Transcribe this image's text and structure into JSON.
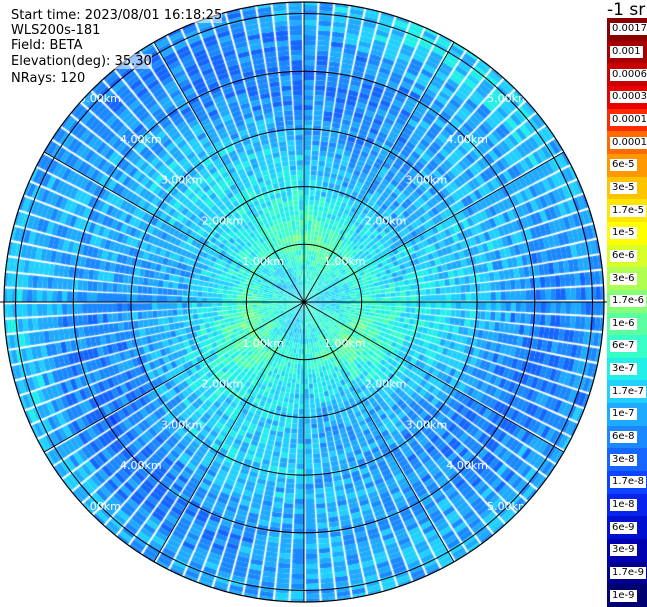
{
  "header": {
    "start_time": "Start time: 2023/08/01 16:18:25",
    "instrument": "WLS200s-181",
    "field": "Field: BETA",
    "elevation": "Elevation(deg): 35.30",
    "nrays": "NRays: 120"
  },
  "colorbar": {
    "unit": "-1 sr",
    "labels": [
      "0.0017",
      "0.001",
      "0.0006",
      "0.0003",
      "0.00017",
      "0.0001",
      "6e-5",
      "3e-5",
      "1.7e-5",
      "1e-5",
      "6e-6",
      "3e-6",
      "1.7e-6",
      "1e-6",
      "6e-7",
      "3e-7",
      "1.7e-7",
      "1e-7",
      "6e-8",
      "3e-8",
      "1.7e-8",
      "1e-8",
      "6e-9",
      "3e-9",
      "1.7e-9",
      "1e-9"
    ],
    "colors": [
      "#8b0000",
      "#a80000",
      "#c80000",
      "#e80000",
      "#ff2a00",
      "#ff6a00",
      "#ff9800",
      "#ffc400",
      "#ffe600",
      "#ffff00",
      "#d8ff28",
      "#b0ff50",
      "#86ff78",
      "#5cffa0",
      "#38ffc8",
      "#20f0e8",
      "#20d0ff",
      "#1eaaff",
      "#1a88ff",
      "#1466ff",
      "#0e44ff",
      "#0a24f0",
      "#0010d0",
      "#0000b0",
      "#000090",
      "#000070"
    ]
  },
  "range_rings": [
    {
      "range_km": 1,
      "label": "1.00km"
    },
    {
      "range_km": 2,
      "label": "2.00km"
    },
    {
      "range_km": 3,
      "label": "3.00km"
    },
    {
      "range_km": 4,
      "label": "4.00km"
    },
    {
      "range_km": 5,
      "label": "5.00km"
    }
  ],
  "chart_data": {
    "type": "heatmap",
    "projection": "polar PPI",
    "field": "BETA",
    "unit": "-1 sr",
    "elevation_deg": 35.3,
    "n_rays": 120,
    "range_max_km": 5.2,
    "color_scale": "log",
    "color_range": [
      1e-09,
      0.0017
    ],
    "rings_km": [
      1,
      2,
      3,
      4,
      5
    ],
    "spokes_deg": [
      0,
      30,
      60,
      90,
      120,
      150,
      180,
      210,
      240,
      270,
      300,
      330
    ],
    "approx_field_by_range": [
      {
        "range_km": 0.5,
        "beta": 3e-07
      },
      {
        "range_km": 1.0,
        "beta": 6e-07
      },
      {
        "range_km": 1.5,
        "beta": 3e-07
      },
      {
        "range_km": 2.0,
        "beta": 1.7e-07
      },
      {
        "range_km": 3.0,
        "beta": 1e-07
      },
      {
        "range_km": 4.0,
        "beta": 6e-08
      },
      {
        "range_km": 5.0,
        "beta": 1e-07
      }
    ]
  }
}
